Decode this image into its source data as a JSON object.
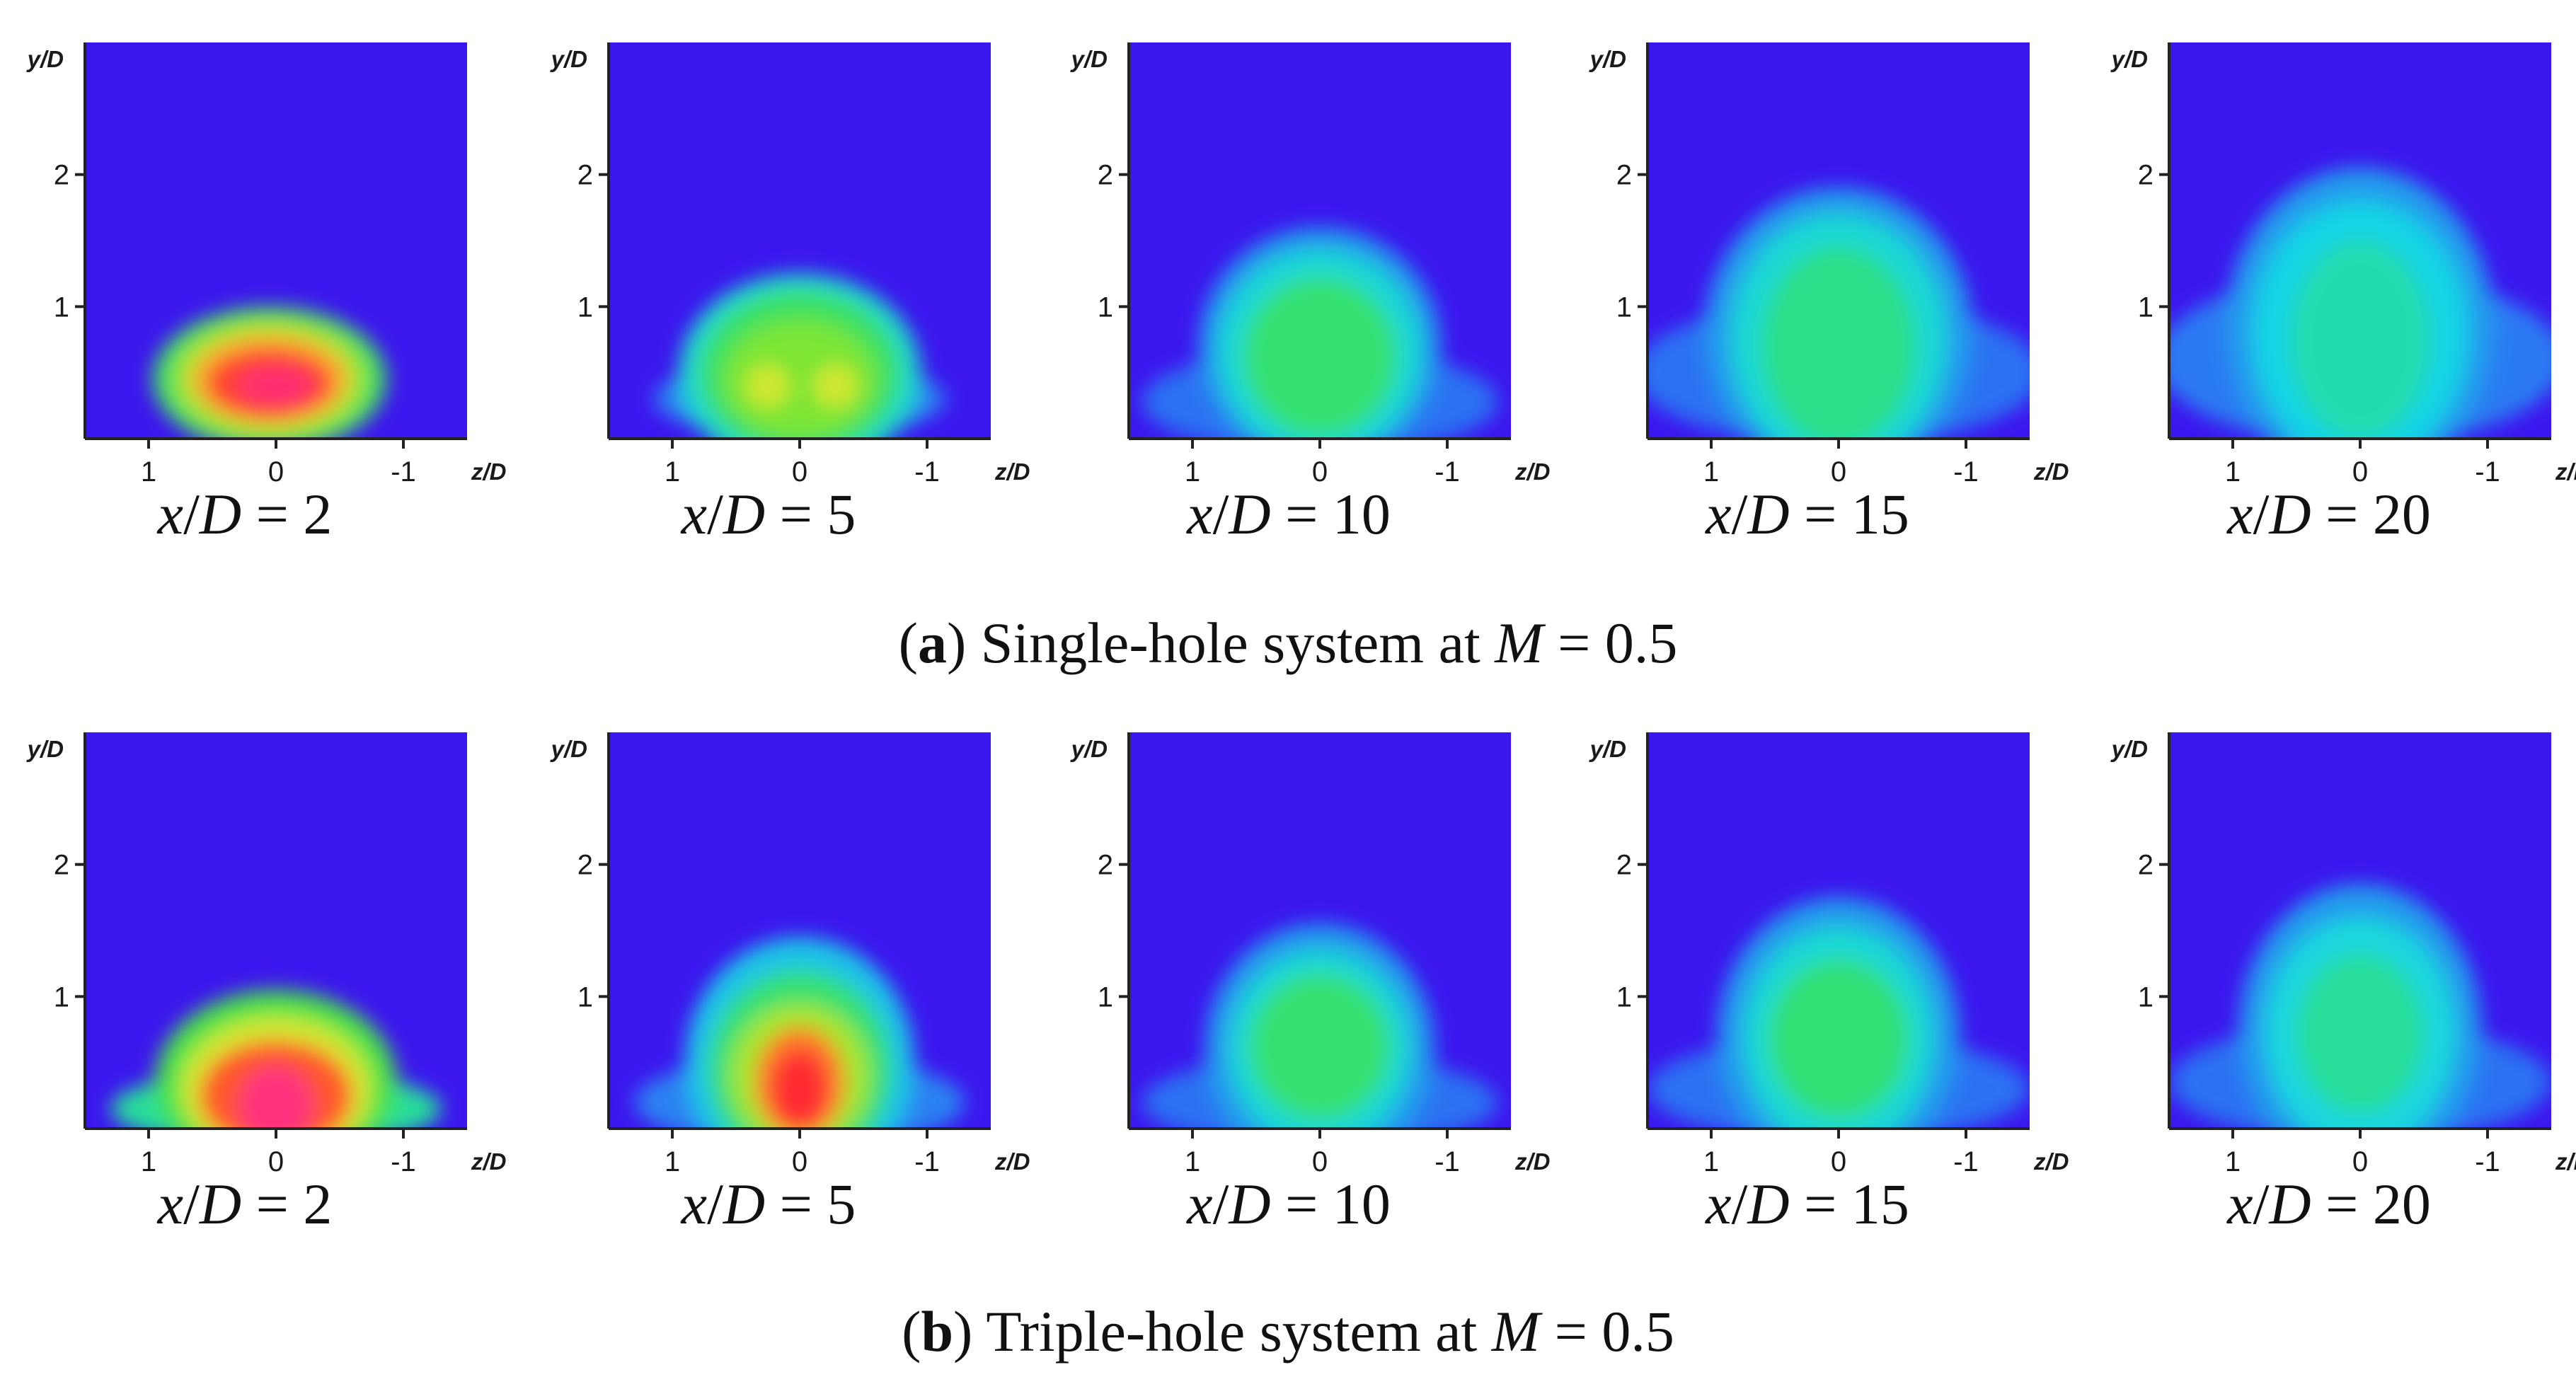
{
  "chart_data": {
    "type": "heatmap",
    "description_source": "contour maps of film cooling effectiveness in y/D vs z/D planes",
    "xlabel": "z/D",
    "ylabel": "y/D",
    "x_ticks": [
      "1",
      "0",
      "-1"
    ],
    "y_ticks": [
      "1",
      "2"
    ],
    "xlim": [
      1.5,
      -1.5
    ],
    "ylim": [
      0,
      3
    ],
    "colormap": [
      "#3c16ee",
      "#2a7bf2",
      "#18d6e4",
      "#2fe07a",
      "#4ee33c",
      "#a8e62e",
      "#f2ea36",
      "#ff7a2a",
      "#ff2430",
      "#ff36a8"
    ],
    "station_prefix": "x/D",
    "rows": [
      {
        "caption_letter": "a",
        "caption_text": " Single-hole system at ",
        "caption_var": "M",
        "caption_value": " = 0.5",
        "panels": [
          {
            "station": "2",
            "blobs": [
              {
                "cx": 0.05,
                "cy": 0.45,
                "rx": 0.92,
                "ry": 0.55,
                "level": 0.38
              },
              {
                "cx": 0.05,
                "cy": 0.45,
                "rx": 0.75,
                "ry": 0.45,
                "level": 0.55
              },
              {
                "cx": 0.05,
                "cy": 0.45,
                "rx": 0.62,
                "ry": 0.35,
                "level": 0.72
              },
              {
                "cx": 0.05,
                "cy": 0.42,
                "rx": 0.5,
                "ry": 0.27,
                "level": 0.85
              },
              {
                "cx": 0.0,
                "cy": 0.4,
                "rx": 0.3,
                "ry": 0.15,
                "level": 0.95
              }
            ]
          },
          {
            "station": "5",
            "blobs": [
              {
                "cx": 0.0,
                "cy": 0.3,
                "rx": 1.15,
                "ry": 0.3,
                "level": 0.12
              },
              {
                "cx": 0.0,
                "cy": 0.5,
                "rx": 0.95,
                "ry": 0.75,
                "level": 0.25
              },
              {
                "cx": 0.0,
                "cy": 0.5,
                "rx": 0.78,
                "ry": 0.62,
                "level": 0.38
              },
              {
                "cx": 0.0,
                "cy": 0.45,
                "rx": 0.6,
                "ry": 0.45,
                "level": 0.5
              },
              {
                "cx": 0.25,
                "cy": 0.4,
                "rx": 0.17,
                "ry": 0.16,
                "level": 0.62
              },
              {
                "cx": -0.28,
                "cy": 0.4,
                "rx": 0.17,
                "ry": 0.16,
                "level": 0.62
              }
            ]
          },
          {
            "station": "10",
            "blobs": [
              {
                "cx": 0.0,
                "cy": 0.28,
                "rx": 1.4,
                "ry": 0.4,
                "level": 0.1
              },
              {
                "cx": 0.0,
                "cy": 0.7,
                "rx": 0.95,
                "ry": 0.9,
                "level": 0.15
              },
              {
                "cx": 0.0,
                "cy": 0.65,
                "rx": 0.8,
                "ry": 0.78,
                "level": 0.24
              },
              {
                "cx": 0.0,
                "cy": 0.62,
                "rx": 0.6,
                "ry": 0.6,
                "level": 0.35
              }
            ]
          },
          {
            "station": "15",
            "blobs": [
              {
                "cx": 0.0,
                "cy": 0.5,
                "rx": 1.6,
                "ry": 0.55,
                "level": 0.1
              },
              {
                "cx": 0.0,
                "cy": 0.8,
                "rx": 1.05,
                "ry": 1.1,
                "level": 0.15
              },
              {
                "cx": 0.0,
                "cy": 0.75,
                "rx": 0.85,
                "ry": 0.95,
                "level": 0.24
              },
              {
                "cx": 0.0,
                "cy": 0.7,
                "rx": 0.6,
                "ry": 0.75,
                "level": 0.32
              }
            ]
          },
          {
            "station": "20",
            "blobs": [
              {
                "cx": 0.0,
                "cy": 0.6,
                "rx": 1.6,
                "ry": 0.65,
                "level": 0.11
              },
              {
                "cx": 0.0,
                "cy": 0.85,
                "rx": 1.05,
                "ry": 1.2,
                "level": 0.15
              },
              {
                "cx": 0.0,
                "cy": 0.8,
                "rx": 0.85,
                "ry": 1.0,
                "level": 0.22
              },
              {
                "cx": 0.0,
                "cy": 0.75,
                "rx": 0.55,
                "ry": 0.75,
                "level": 0.28
              }
            ]
          }
        ]
      },
      {
        "caption_letter": "b",
        "caption_text": " Triple-hole system at ",
        "caption_var": "M",
        "caption_value": " = 0.5",
        "panels": [
          {
            "station": "2",
            "blobs": [
              {
                "cx": 0.0,
                "cy": 0.15,
                "rx": 1.3,
                "ry": 0.3,
                "level": 0.3
              },
              {
                "cx": 0.0,
                "cy": 0.35,
                "rx": 0.95,
                "ry": 0.7,
                "level": 0.42
              },
              {
                "cx": 0.0,
                "cy": 0.3,
                "rx": 0.75,
                "ry": 0.55,
                "level": 0.62
              },
              {
                "cx": 0.0,
                "cy": 0.25,
                "rx": 0.6,
                "ry": 0.42,
                "level": 0.82
              },
              {
                "cx": 0.0,
                "cy": 0.18,
                "rx": 0.3,
                "ry": 0.3,
                "level": 0.96
              }
            ]
          },
          {
            "station": "5",
            "blobs": [
              {
                "cx": 0.0,
                "cy": 0.2,
                "rx": 1.3,
                "ry": 0.35,
                "level": 0.12
              },
              {
                "cx": 0.0,
                "cy": 0.5,
                "rx": 0.9,
                "ry": 0.95,
                "level": 0.2
              },
              {
                "cx": 0.0,
                "cy": 0.45,
                "rx": 0.72,
                "ry": 0.75,
                "level": 0.35
              },
              {
                "cx": 0.0,
                "cy": 0.4,
                "rx": 0.55,
                "ry": 0.55,
                "level": 0.55
              },
              {
                "cx": 0.0,
                "cy": 0.35,
                "rx": 0.35,
                "ry": 0.42,
                "level": 0.78
              },
              {
                "cx": 0.0,
                "cy": 0.3,
                "rx": 0.22,
                "ry": 0.3,
                "level": 0.88
              }
            ]
          },
          {
            "station": "10",
            "blobs": [
              {
                "cx": 0.0,
                "cy": 0.2,
                "rx": 1.4,
                "ry": 0.35,
                "level": 0.1
              },
              {
                "cx": 0.0,
                "cy": 0.6,
                "rx": 0.9,
                "ry": 0.95,
                "level": 0.15
              },
              {
                "cx": 0.0,
                "cy": 0.6,
                "rx": 0.72,
                "ry": 0.75,
                "level": 0.24
              },
              {
                "cx": 0.0,
                "cy": 0.62,
                "rx": 0.55,
                "ry": 0.55,
                "level": 0.35
              }
            ]
          },
          {
            "station": "15",
            "blobs": [
              {
                "cx": 0.0,
                "cy": 0.3,
                "rx": 1.5,
                "ry": 0.4,
                "level": 0.1
              },
              {
                "cx": 0.0,
                "cy": 0.7,
                "rx": 0.95,
                "ry": 1.05,
                "level": 0.15
              },
              {
                "cx": 0.0,
                "cy": 0.68,
                "rx": 0.75,
                "ry": 0.85,
                "level": 0.24
              },
              {
                "cx": 0.0,
                "cy": 0.68,
                "rx": 0.55,
                "ry": 0.6,
                "level": 0.34
              }
            ]
          },
          {
            "station": "20",
            "blobs": [
              {
                "cx": 0.0,
                "cy": 0.35,
                "rx": 1.5,
                "ry": 0.45,
                "level": 0.1
              },
              {
                "cx": 0.0,
                "cy": 0.75,
                "rx": 0.95,
                "ry": 1.1,
                "level": 0.15
              },
              {
                "cx": 0.0,
                "cy": 0.72,
                "rx": 0.75,
                "ry": 0.88,
                "level": 0.23
              },
              {
                "cx": 0.0,
                "cy": 0.72,
                "rx": 0.5,
                "ry": 0.6,
                "level": 0.3
              }
            ]
          }
        ]
      }
    ]
  }
}
